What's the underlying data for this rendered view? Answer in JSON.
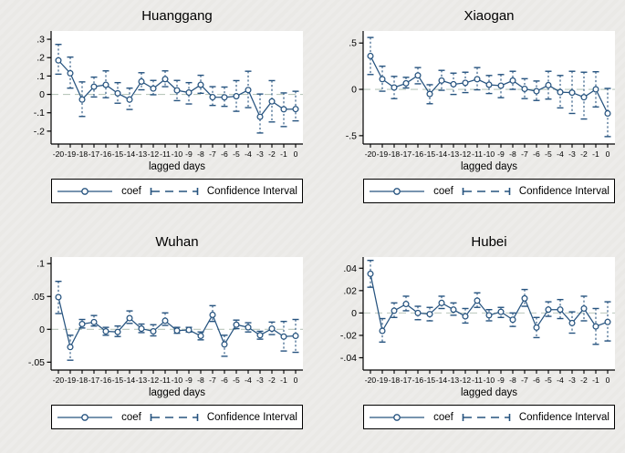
{
  "figure": {
    "background": "#ecebe8",
    "plot_background": "#ffffff",
    "accent": "#26537f",
    "zero_line_color": "#b9c8bc",
    "axis_color": "#000000",
    "legend": {
      "coef": "coef",
      "ci": "Confidence Interval"
    }
  },
  "chart_data": [
    {
      "type": "line",
      "title": "Huanggang",
      "xlabel": "lagged days",
      "x": [
        -20,
        -19,
        -18,
        -17,
        -16,
        -15,
        -14,
        -13,
        -12,
        -11,
        -10,
        -9,
        -8,
        -7,
        -6,
        -5,
        -4,
        -3,
        -2,
        -1,
        0
      ],
      "x_labels": [
        "-20",
        "-19",
        "-18",
        "-17",
        "-16",
        "-15",
        "-14",
        "-13",
        "-12",
        "-11",
        "-10",
        "-9",
        "-8",
        "-7",
        "-6",
        "-5",
        "-4",
        "-3",
        "-2",
        "-1",
        "0"
      ],
      "ytick_values": [
        0.3,
        0.2,
        0.1,
        0,
        -0.1,
        -0.2
      ],
      "ytick_labels": [
        ".3",
        ".2",
        ".1",
        "0",
        "-.1",
        "-.2"
      ],
      "ylim": [
        -0.27,
        0.345
      ],
      "legend": [
        "coef",
        "Confidence Interval"
      ],
      "series": [
        {
          "name": "coef",
          "values": [
            0.185,
            0.115,
            -0.028,
            0.042,
            0.052,
            0.006,
            -0.028,
            0.07,
            0.032,
            0.083,
            0.022,
            0.01,
            0.052,
            -0.015,
            -0.016,
            -0.01,
            0.024,
            -0.122,
            -0.038,
            -0.081,
            -0.08
          ]
        },
        {
          "name": "ci_upper",
          "values": [
            0.272,
            0.203,
            0.068,
            0.094,
            0.128,
            0.064,
            0.034,
            0.118,
            0.076,
            0.128,
            0.076,
            0.064,
            0.104,
            0.042,
            0.04,
            0.075,
            0.126,
            0.002,
            0.075,
            0.008,
            0.017
          ]
        },
        {
          "name": "ci_lower",
          "values": [
            0.11,
            0.034,
            -0.12,
            -0.014,
            -0.018,
            -0.048,
            -0.082,
            0.025,
            -0.002,
            0.042,
            -0.034,
            -0.052,
            0.006,
            -0.06,
            -0.065,
            -0.092,
            -0.072,
            -0.21,
            -0.15,
            -0.175,
            -0.144
          ]
        }
      ]
    },
    {
      "type": "line",
      "title": "Xiaogan",
      "xlabel": "lagged days",
      "x": [
        -20,
        -19,
        -18,
        -17,
        -16,
        -15,
        -14,
        -13,
        -12,
        -11,
        -10,
        -9,
        -8,
        -7,
        -6,
        -5,
        -4,
        -3,
        -2,
        -1,
        0
      ],
      "x_labels": [
        "-20",
        "-19",
        "-18",
        "-17",
        "-16",
        "-15",
        "-14",
        "-13",
        "-12",
        "-11",
        "-10",
        "-9",
        "-8",
        "-7",
        "-6",
        "-5",
        "-4",
        "-3",
        "-2",
        "-1",
        "0"
      ],
      "ytick_values": [
        0.5,
        0,
        -0.5
      ],
      "ytick_labels": [
        ".5",
        "0",
        "-.5"
      ],
      "ylim": [
        -0.59,
        0.63
      ],
      "legend": [
        "coef",
        "Confidence Interval"
      ],
      "series": [
        {
          "name": "coef",
          "values": [
            0.36,
            0.11,
            0.02,
            0.065,
            0.15,
            -0.05,
            0.095,
            0.055,
            0.07,
            0.11,
            0.05,
            0.04,
            0.095,
            0.005,
            -0.02,
            0.045,
            -0.03,
            -0.035,
            -0.085,
            0.0,
            -0.26
          ]
        },
        {
          "name": "ci_upper",
          "values": [
            0.56,
            0.25,
            0.14,
            0.13,
            0.235,
            0.05,
            0.205,
            0.175,
            0.185,
            0.235,
            0.15,
            0.16,
            0.195,
            0.115,
            0.09,
            0.195,
            0.15,
            0.195,
            0.185,
            0.19,
            0.01
          ]
        },
        {
          "name": "ci_lower",
          "values": [
            0.16,
            -0.02,
            -0.1,
            0.015,
            0.06,
            -0.155,
            -0.01,
            -0.055,
            -0.035,
            -0.005,
            -0.045,
            -0.09,
            0.0,
            -0.1,
            -0.12,
            -0.105,
            -0.2,
            -0.26,
            -0.32,
            -0.19,
            -0.51
          ]
        }
      ]
    },
    {
      "type": "line",
      "title": "Wuhan",
      "xlabel": "lagged days",
      "x": [
        -20,
        -19,
        -18,
        -17,
        -16,
        -15,
        -14,
        -13,
        -12,
        -11,
        -10,
        -9,
        -8,
        -7,
        -6,
        -5,
        -4,
        -3,
        -2,
        -1,
        0
      ],
      "x_labels": [
        "-20",
        "-19",
        "-18",
        "-17",
        "-16",
        "-15",
        "-14",
        "-13",
        "-12",
        "-11",
        "-10",
        "-9",
        "-8",
        "-7",
        "-6",
        "-5",
        "-4",
        "-3",
        "-2",
        "-1",
        "0"
      ],
      "ytick_values": [
        0.1,
        0.05,
        0,
        -0.05
      ],
      "ytick_labels": [
        ".1",
        ".05",
        "0",
        "-.05"
      ],
      "ylim": [
        -0.062,
        0.11
      ],
      "legend": [
        "coef",
        "Confidence Interval"
      ],
      "series": [
        {
          "name": "coef",
          "values": [
            0.049,
            -0.027,
            0.008,
            0.011,
            -0.003,
            -0.004,
            0.017,
            0.001,
            -0.003,
            0.013,
            -0.002,
            -0.001,
            -0.01,
            0.022,
            -0.023,
            0.007,
            0.003,
            -0.009,
            0.001,
            -0.011,
            -0.01
          ]
        },
        {
          "name": "ci_upper",
          "values": [
            0.073,
            -0.009,
            0.015,
            0.021,
            0.003,
            0.005,
            0.028,
            0.008,
            0.007,
            0.025,
            0.003,
            0.003,
            -0.004,
            0.036,
            -0.009,
            0.014,
            0.01,
            -0.003,
            0.011,
            0.012,
            0.015
          ]
        },
        {
          "name": "ci_lower",
          "values": [
            0.024,
            -0.047,
            0.002,
            0.005,
            -0.009,
            -0.011,
            0.009,
            -0.005,
            -0.01,
            0.006,
            -0.006,
            -0.004,
            -0.016,
            0.012,
            -0.041,
            0.001,
            -0.004,
            -0.015,
            -0.008,
            -0.033,
            -0.035
          ]
        }
      ]
    },
    {
      "type": "line",
      "title": "Hubei",
      "xlabel": "lagged days",
      "x": [
        -20,
        -19,
        -18,
        -17,
        -16,
        -15,
        -14,
        -13,
        -12,
        -11,
        -10,
        -9,
        -8,
        -7,
        -6,
        -5,
        -4,
        -3,
        -2,
        -1,
        0
      ],
      "x_labels": [
        "-20",
        "-19",
        "-18",
        "-17",
        "-16",
        "-15",
        "-14",
        "-13",
        "-12",
        "-11",
        "-10",
        "-9",
        "-8",
        "-7",
        "-6",
        "-5",
        "-4",
        "-3",
        "-2",
        "-1",
        "0"
      ],
      "ytick_values": [
        0.04,
        0.02,
        0,
        -0.02,
        -0.04
      ],
      "ytick_labels": [
        ".04",
        ".02",
        "0",
        "-.02",
        "-.04"
      ],
      "ylim": [
        -0.051,
        0.05
      ],
      "legend": [
        "coef",
        "Confidence Interval"
      ],
      "series": [
        {
          "name": "coef",
          "values": [
            0.035,
            -0.016,
            0.002,
            0.008,
            0.0,
            -0.001,
            0.009,
            0.003,
            -0.003,
            0.011,
            -0.002,
            0.001,
            -0.006,
            0.013,
            -0.013,
            0.003,
            0.003,
            -0.009,
            0.004,
            -0.012,
            -0.008
          ]
        },
        {
          "name": "ci_upper",
          "values": [
            0.047,
            -0.005,
            0.009,
            0.015,
            0.006,
            0.005,
            0.015,
            0.009,
            0.004,
            0.018,
            0.003,
            0.005,
            0.0,
            0.021,
            -0.004,
            0.01,
            0.012,
            0.001,
            0.015,
            0.004,
            0.01
          ]
        },
        {
          "name": "ci_lower",
          "values": [
            0.023,
            -0.026,
            -0.004,
            0.002,
            -0.006,
            -0.007,
            0.004,
            -0.002,
            -0.009,
            0.005,
            -0.007,
            -0.004,
            -0.012,
            0.006,
            -0.022,
            -0.003,
            -0.005,
            -0.018,
            -0.007,
            -0.028,
            -0.025
          ]
        }
      ]
    }
  ]
}
